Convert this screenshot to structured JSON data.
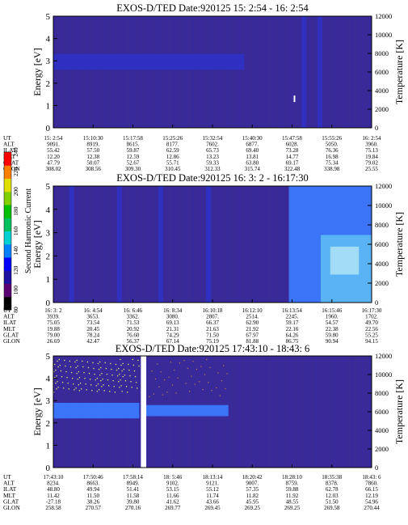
{
  "colors": {
    "background": "#3a2a98",
    "stripe": "#2f31c4",
    "band_light": "#3d7bff",
    "band_bright": "#5db8f4",
    "band_cyan": "#a8e0f4",
    "particle": "#e8e86a"
  },
  "colorbar": {
    "title": "Second Harmonic Current",
    "ticks": [
      "80",
      "100",
      "120",
      "140",
      "160",
      "180",
      "200",
      "220",
      "240"
    ],
    "colors": [
      "#000000",
      "#5a0070",
      "#2010a0",
      "#0000ff",
      "#0080ff",
      "#00d0d0",
      "#00c060",
      "#00c000",
      "#80d000",
      "#e0e000",
      "#ff8000",
      "#ff0000"
    ]
  },
  "chart_data": [
    {
      "type": "heatmap",
      "title": "EXOS-D/TED    Date:920125  15: 2:54 - 16: 2:54",
      "ylabel": "Energy [eV]",
      "ylabel_right": "Temperature [K]",
      "ylim": [
        0,
        5
      ],
      "yticks": [
        "0",
        "1",
        "2",
        "3",
        "4",
        "5"
      ],
      "ylim_right": [
        0,
        12000
      ],
      "yticks_right": [
        "0",
        "2000",
        "4000",
        "6000",
        "8000",
        "10000",
        "12000"
      ],
      "bands": [
        {
          "y0": 2.6,
          "y1": 3.3,
          "x0": 0.0,
          "x1": 0.6,
          "level": "stripe"
        }
      ],
      "vstripes": [
        0.78,
        0.83
      ],
      "marks": [
        {
          "x": 0.755,
          "e": 1.3
        }
      ],
      "table": {
        "labels": [
          "UT",
          "ALT",
          "ILAT",
          "MLT",
          "GLAT",
          "GLON"
        ],
        "columns": [
          [
            "15: 2:54",
            "9091.",
            "55.42",
            "12.20",
            "47.79",
            "308.02"
          ],
          [
            "15:10:30",
            "8919.",
            "57.50",
            "12.38",
            "50.07",
            "308.56"
          ],
          [
            "15:17:58",
            "8615.",
            "59.87",
            "12.59",
            "52.67",
            "309.30"
          ],
          [
            "15:25:26",
            "8177.",
            "62.59",
            "12.86",
            "55.71",
            "310.45"
          ],
          [
            "15:32:54",
            "7602.",
            "65.73",
            "13.23",
            "59.33",
            "312.33"
          ],
          [
            "15:40:30",
            "6877.",
            "69.40",
            "13.81",
            "63.80",
            "315.74"
          ],
          [
            "15:47:58",
            "6028.",
            "73.28",
            "14.77",
            "69.17",
            "322.48"
          ],
          [
            "15:55:26",
            "5050.",
            "76.36",
            "16.98",
            "75.34",
            "338.98"
          ],
          [
            "16: 2:54",
            "3960.",
            "75.13",
            "19.84",
            "79.02",
            "25.55"
          ]
        ]
      }
    },
    {
      "type": "heatmap",
      "title": "EXOS-D/TED    Date:920125  16: 3: 2 - 16:17:30",
      "ylabel": "Energy [eV]",
      "ylabel_right": "Temperature [K]",
      "ylim": [
        0,
        5
      ],
      "yticks": [
        "0",
        "1",
        "2",
        "3",
        "4",
        "5"
      ],
      "ylim_right": [
        0,
        12000
      ],
      "yticks_right": [
        "0",
        "2000",
        "4000",
        "6000",
        "8000",
        "10000",
        "12000"
      ],
      "bands": [
        {
          "y0": 0.0,
          "y1": 5.0,
          "x0": 0.74,
          "x1": 1.0,
          "level": "band_light"
        },
        {
          "y0": 0.0,
          "y1": 2.9,
          "x0": 0.84,
          "x1": 1.0,
          "level": "band_bright"
        },
        {
          "y0": 1.2,
          "y1": 2.4,
          "x0": 0.87,
          "x1": 0.96,
          "level": "band_cyan"
        }
      ],
      "vstripes": [
        0.05,
        0.2,
        0.33,
        0.48
      ],
      "marks": [],
      "table": {
        "labels": [
          "UT",
          "ALT",
          "ILAT",
          "MLT",
          "GLAT",
          "GLON"
        ],
        "columns": [
          [
            "16: 3: 2",
            "3939.",
            "75.05",
            "19.88",
            "79.00",
            "26.69"
          ],
          [
            "16: 4:54",
            "3653.",
            "73.54",
            "20.45",
            "78.24",
            "42.47"
          ],
          [
            "16: 6:46",
            "3362.",
            "71.53",
            "20.92",
            "76.60",
            "56.37"
          ],
          [
            "16: 8:34",
            "3080.",
            "69.13",
            "21.31",
            "74.29",
            "67.14"
          ],
          [
            "16:10:18",
            "2807.",
            "66.37",
            "21.63",
            "71.50",
            "75.19"
          ],
          [
            "16:12:10",
            "2514.",
            "62.90",
            "21.92",
            "67.97",
            "81.88"
          ],
          [
            "16:13:54",
            "2245.",
            "59.17",
            "22.16",
            "64.26",
            "86.75"
          ],
          [
            "16:15:46",
            "1960.",
            "54.57",
            "22.38",
            "59.80",
            "90.94"
          ],
          [
            "16:17:30",
            "1702.",
            "49.70",
            "22.56",
            "55.25",
            "94.15"
          ]
        ]
      }
    },
    {
      "type": "heatmap",
      "title": "EXOS-D/TED    Date:920125  17:43:10 - 18:43: 6",
      "ylabel": "Energy [eV]",
      "ylabel_right": "Temperature [K]",
      "ylim": [
        0,
        5
      ],
      "yticks": [
        "0",
        "1",
        "2",
        "3",
        "4",
        "5"
      ],
      "ylim_right": [
        0,
        12000
      ],
      "yticks_right": [
        "0",
        "2000",
        "4000",
        "6000",
        "8000",
        "10000",
        "12000"
      ],
      "bands": [
        {
          "y0": 2.2,
          "y1": 2.9,
          "x0": 0.0,
          "x1": 0.27,
          "level": "band_light"
        },
        {
          "y0": 2.3,
          "y1": 2.8,
          "x0": 0.29,
          "x1": 0.55,
          "level": "band_light"
        }
      ],
      "gap": [
        0.275,
        0.292
      ],
      "vstripes": [],
      "marks": [],
      "table": {
        "labels": [
          "UT",
          "ALT",
          "ILAT",
          "MLT",
          "GLAT",
          "GLON"
        ],
        "columns": [
          [
            "17:43:10",
            "8234.",
            "48.80",
            "11.42",
            "-27.18",
            "258.58"
          ],
          [
            "17:50:46",
            "8663.",
            "49.94",
            "11.50",
            "38.26",
            "270.57"
          ],
          [
            "17:58:14",
            "8949.",
            "51.41",
            "11.58",
            "39.80",
            "270.16"
          ],
          [
            "18: 5:46",
            "9102.",
            "53.15",
            "11.66",
            "41.62",
            "269.77"
          ],
          [
            "18:13:14",
            "9121.",
            "55.12",
            "11.74",
            "43.66",
            "269.45"
          ],
          [
            "18:20:42",
            "9007.",
            "57.35",
            "11.82",
            "45.95",
            "269.25"
          ],
          [
            "18:28:10",
            "8759.",
            "59.88",
            "11.92",
            "48.55",
            "269.25"
          ],
          [
            "18:35:38",
            "8378.",
            "62.78",
            "12.03",
            "51.50",
            "269.58"
          ],
          [
            "18:43: 6",
            "7860.",
            "66.15",
            "12.19",
            "54.96",
            "270.44"
          ]
        ]
      }
    }
  ]
}
